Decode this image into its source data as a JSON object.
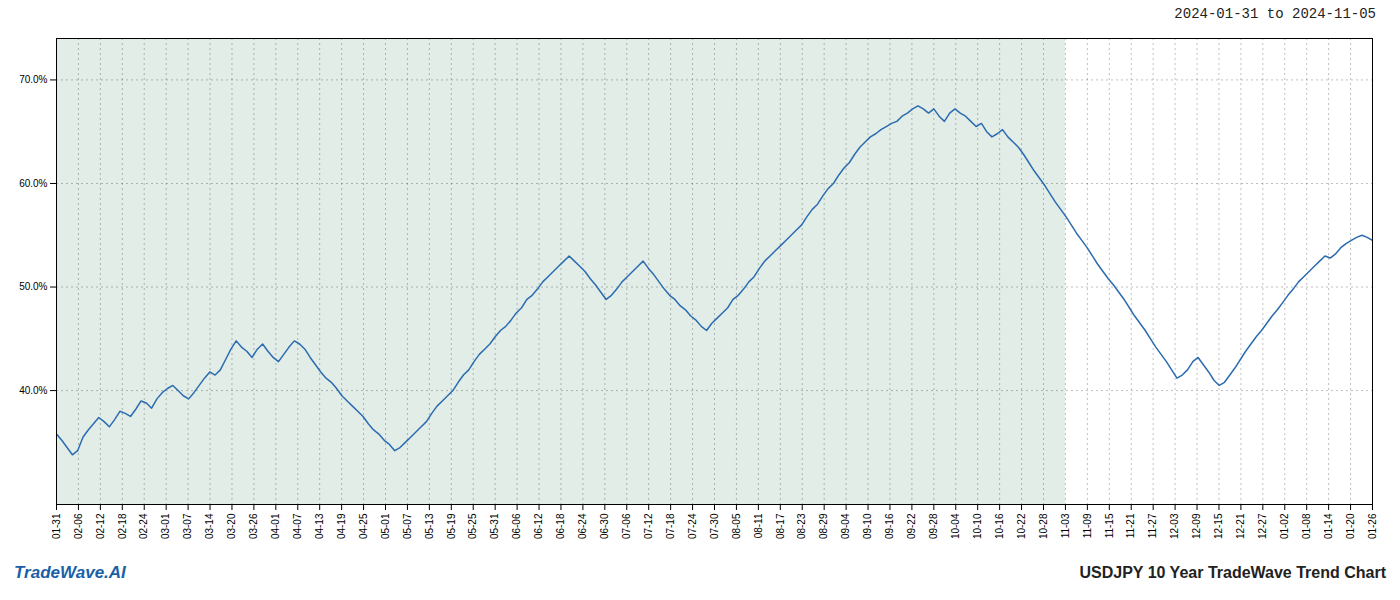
{
  "chart_data": {
    "type": "line",
    "title": "USDJPY 10 Year TradeWave Trend Chart",
    "subtitle": "2024-01-31 to 2024-11-05",
    "annotations": [
      "TradeWave.AI"
    ],
    "color": "#2b6cb0",
    "grid": true,
    "shade": {
      "xlim": [
        0,
        190.9
      ],
      "color": "#e2ede8"
    },
    "xlim": [
      0,
      249
    ],
    "xticks": [
      {
        "value": 0,
        "label": "01-31"
      },
      {
        "value": 4.15,
        "label": "02-06"
      },
      {
        "value": 8.3,
        "label": "02-12"
      },
      {
        "value": 12.45,
        "label": "02-18"
      },
      {
        "value": 16.6,
        "label": "02-24"
      },
      {
        "value": 20.75,
        "label": "03-01"
      },
      {
        "value": 24.9,
        "label": "03-07"
      },
      {
        "value": 29.05,
        "label": "03-14"
      },
      {
        "value": 33.2,
        "label": "03-20"
      },
      {
        "value": 37.35,
        "label": "03-26"
      },
      {
        "value": 41.5,
        "label": "04-01"
      },
      {
        "value": 45.65,
        "label": "04-07"
      },
      {
        "value": 49.8,
        "label": "04-13"
      },
      {
        "value": 53.95,
        "label": "04-19"
      },
      {
        "value": 58.1,
        "label": "04-25"
      },
      {
        "value": 62.25,
        "label": "05-01"
      },
      {
        "value": 66.4,
        "label": "05-07"
      },
      {
        "value": 70.55,
        "label": "05-13"
      },
      {
        "value": 74.7,
        "label": "05-19"
      },
      {
        "value": 78.85,
        "label": "05-25"
      },
      {
        "value": 83,
        "label": "05-31"
      },
      {
        "value": 87.15,
        "label": "06-06"
      },
      {
        "value": 91.3,
        "label": "06-12"
      },
      {
        "value": 95.45,
        "label": "06-18"
      },
      {
        "value": 99.6,
        "label": "06-24"
      },
      {
        "value": 103.75,
        "label": "06-30"
      },
      {
        "value": 107.9,
        "label": "07-06"
      },
      {
        "value": 112.05,
        "label": "07-12"
      },
      {
        "value": 116.2,
        "label": "07-18"
      },
      {
        "value": 120.35,
        "label": "07-24"
      },
      {
        "value": 124.5,
        "label": "07-30"
      },
      {
        "value": 128.65,
        "label": "08-05"
      },
      {
        "value": 132.8,
        "label": "08-11"
      },
      {
        "value": 136.95,
        "label": "08-17"
      },
      {
        "value": 141.1,
        "label": "08-23"
      },
      {
        "value": 145.25,
        "label": "08-29"
      },
      {
        "value": 149.4,
        "label": "09-04"
      },
      {
        "value": 153.55,
        "label": "09-10"
      },
      {
        "value": 157.7,
        "label": "09-16"
      },
      {
        "value": 161.85,
        "label": "09-22"
      },
      {
        "value": 166,
        "label": "09-28"
      },
      {
        "value": 170.15,
        "label": "10-04"
      },
      {
        "value": 174.3,
        "label": "10-10"
      },
      {
        "value": 178.45,
        "label": "10-16"
      },
      {
        "value": 182.6,
        "label": "10-22"
      },
      {
        "value": 186.75,
        "label": "10-28"
      },
      {
        "value": 190.9,
        "label": "11-03"
      },
      {
        "value": 195.05,
        "label": "11-09"
      },
      {
        "value": 199.2,
        "label": "11-15"
      },
      {
        "value": 203.35,
        "label": "11-21"
      },
      {
        "value": 207.5,
        "label": "11-27"
      },
      {
        "value": 211.65,
        "label": "12-03"
      },
      {
        "value": 215.8,
        "label": "12-09"
      },
      {
        "value": 219.95,
        "label": "12-15"
      },
      {
        "value": 224.1,
        "label": "12-21"
      },
      {
        "value": 228.25,
        "label": "12-27"
      },
      {
        "value": 232.4,
        "label": "01-02"
      },
      {
        "value": 236.55,
        "label": "01-08"
      },
      {
        "value": 240.7,
        "label": "01-14"
      },
      {
        "value": 244.85,
        "label": "01-20"
      },
      {
        "value": 249,
        "label": "01-26"
      }
    ],
    "ylim": [
      0.29,
      0.74
    ],
    "yticks": [
      {
        "value": 0.4,
        "label": "40.0%"
      },
      {
        "value": 0.5,
        "label": "50.0%"
      },
      {
        "value": 0.6,
        "label": "60.0%"
      },
      {
        "value": 0.7,
        "label": "70.0%"
      }
    ],
    "values": [
      0.358,
      0.352,
      0.345,
      0.338,
      0.342,
      0.355,
      0.362,
      0.368,
      0.374,
      0.37,
      0.365,
      0.372,
      0.38,
      0.378,
      0.375,
      0.382,
      0.39,
      0.388,
      0.383,
      0.392,
      0.398,
      0.402,
      0.405,
      0.4,
      0.395,
      0.392,
      0.398,
      0.405,
      0.412,
      0.418,
      0.415,
      0.42,
      0.43,
      0.44,
      0.448,
      0.442,
      0.438,
      0.432,
      0.44,
      0.445,
      0.438,
      0.432,
      0.428,
      0.435,
      0.442,
      0.448,
      0.445,
      0.44,
      0.432,
      0.425,
      0.418,
      0.412,
      0.408,
      0.402,
      0.395,
      0.39,
      0.385,
      0.38,
      0.375,
      0.368,
      0.362,
      0.358,
      0.352,
      0.348,
      0.342,
      0.345,
      0.35,
      0.355,
      0.36,
      0.365,
      0.37,
      0.378,
      0.385,
      0.39,
      0.395,
      0.4,
      0.408,
      0.415,
      0.42,
      0.428,
      0.435,
      0.44,
      0.445,
      0.452,
      0.458,
      0.462,
      0.468,
      0.475,
      0.48,
      0.488,
      0.492,
      0.498,
      0.505,
      0.51,
      0.515,
      0.52,
      0.525,
      0.53,
      0.525,
      0.52,
      0.515,
      0.508,
      0.502,
      0.495,
      0.488,
      0.492,
      0.498,
      0.505,
      0.51,
      0.515,
      0.52,
      0.525,
      0.518,
      0.512,
      0.505,
      0.498,
      0.492,
      0.488,
      0.482,
      0.478,
      0.472,
      0.468,
      0.462,
      0.458,
      0.465,
      0.47,
      0.475,
      0.48,
      0.488,
      0.492,
      0.498,
      0.505,
      0.51,
      0.518,
      0.525,
      0.53,
      0.535,
      0.54,
      0.545,
      0.55,
      0.555,
      0.56,
      0.568,
      0.575,
      0.58,
      0.588,
      0.595,
      0.6,
      0.608,
      0.615,
      0.62,
      0.628,
      0.635,
      0.64,
      0.645,
      0.648,
      0.652,
      0.655,
      0.658,
      0.66,
      0.665,
      0.668,
      0.672,
      0.675,
      0.672,
      0.668,
      0.672,
      0.665,
      0.66,
      0.668,
      0.672,
      0.668,
      0.665,
      0.66,
      0.655,
      0.658,
      0.65,
      0.645,
      0.648,
      0.652,
      0.645,
      0.64,
      0.635,
      0.628,
      0.62,
      0.612,
      0.605,
      0.598,
      0.59,
      0.582,
      0.575,
      0.568,
      0.56,
      0.552,
      0.545,
      0.538,
      0.53,
      0.522,
      0.515,
      0.508,
      0.502,
      0.495,
      0.488,
      0.48,
      0.472,
      0.465,
      0.458,
      0.45,
      0.442,
      0.435,
      0.428,
      0.42,
      0.412,
      0.415,
      0.42,
      0.428,
      0.432,
      0.425,
      0.418,
      0.41,
      0.405,
      0.408,
      0.415,
      0.422,
      0.43,
      0.438,
      0.445,
      0.452,
      0.458,
      0.465,
      0.472,
      0.478,
      0.485,
      0.492,
      0.498,
      0.505,
      0.51,
      0.515,
      0.52,
      0.525,
      0.53,
      0.528,
      0.532,
      0.538,
      0.542,
      0.545,
      0.548,
      0.55,
      0.548,
      0.545
    ]
  }
}
